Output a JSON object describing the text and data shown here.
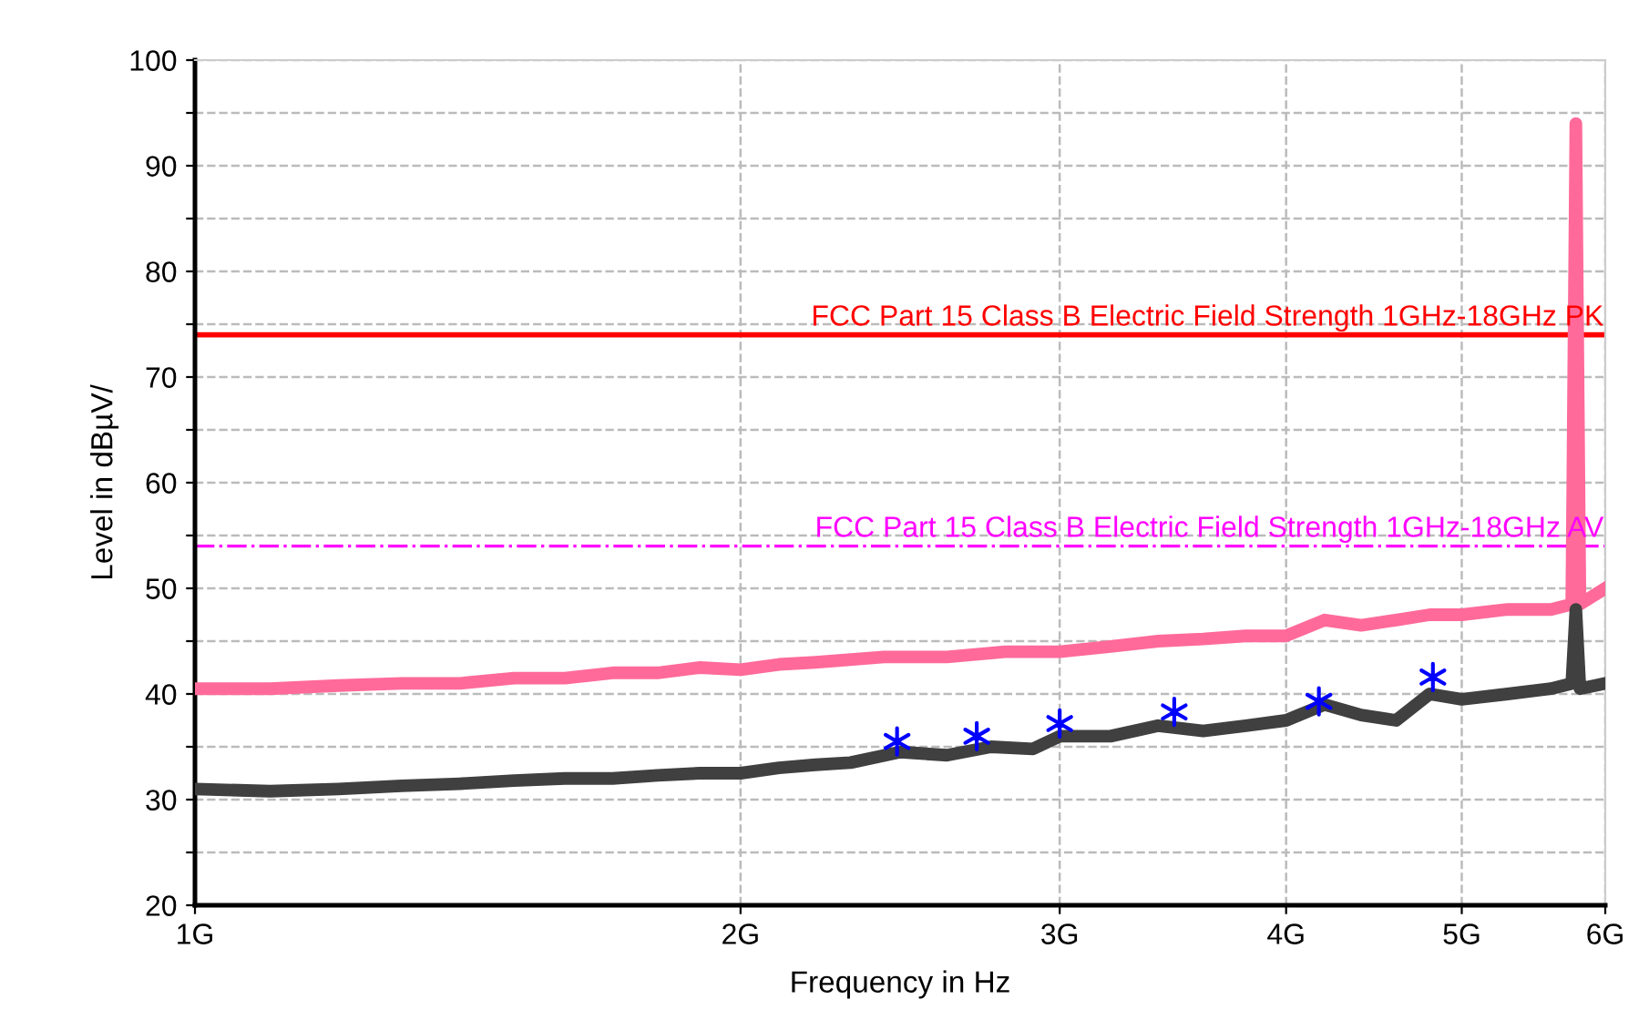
{
  "chart_data": {
    "type": "line",
    "xlabel": "Frequency in Hz",
    "ylabel": "Level in dBµV/",
    "log": "x",
    "xlim": [
      1,
      6
    ],
    "xticks": [
      {
        "value": 1,
        "label": "1G"
      },
      {
        "value": 2,
        "label": "2G"
      },
      {
        "value": 3,
        "label": "3G"
      },
      {
        "value": 4,
        "label": "4G"
      },
      {
        "value": 5,
        "label": "5G"
      },
      {
        "value": 6,
        "label": "6G"
      }
    ],
    "ylim": [
      20,
      100
    ],
    "yticks": [
      20,
      {
        "value": 25,
        "label": null
      },
      30,
      {
        "value": 35,
        "label": null
      },
      40,
      {
        "value": 45,
        "label": null
      },
      50,
      {
        "value": 55,
        "label": null
      },
      60,
      {
        "value": 65,
        "label": null
      },
      70,
      {
        "value": 75,
        "label": null
      },
      80,
      {
        "value": 85,
        "label": null
      },
      90,
      {
        "value": 95,
        "label": null
      },
      100
    ],
    "grid": true,
    "line_style": "solid",
    "marker": "none",
    "series": [
      {
        "color": "#ff6a9a",
        "x": [
          1.0,
          1.1,
          1.2,
          1.3,
          1.4,
          1.5,
          1.6,
          1.7,
          1.8,
          1.9,
          2.0,
          2.1,
          2.2,
          2.4,
          2.6,
          2.8,
          3.0,
          3.2,
          3.4,
          3.6,
          3.8,
          4.0,
          4.2,
          4.4,
          4.6,
          4.8,
          5.0,
          5.3,
          5.6,
          5.75,
          5.78,
          5.81,
          6.0
        ],
        "values": [
          40.5,
          40.5,
          40.8,
          41,
          41,
          41.5,
          41.5,
          42,
          42,
          42.5,
          42.3,
          42.8,
          43,
          43.5,
          43.5,
          44,
          44,
          44.5,
          45,
          45.2,
          45.5,
          45.5,
          47,
          46.5,
          47,
          47.5,
          47.5,
          48,
          48,
          48.5,
          94,
          48.5,
          50
        ]
      },
      {
        "color": "#404040",
        "x": [
          1.0,
          1.1,
          1.2,
          1.3,
          1.4,
          1.5,
          1.6,
          1.7,
          1.8,
          1.9,
          2.0,
          2.1,
          2.2,
          2.3,
          2.45,
          2.6,
          2.75,
          2.9,
          3.0,
          3.2,
          3.4,
          3.6,
          3.8,
          4.0,
          4.2,
          4.4,
          4.6,
          4.8,
          5.0,
          5.3,
          5.6,
          5.75,
          5.78,
          5.81,
          6.0
        ],
        "values": [
          31,
          30.8,
          31,
          31.3,
          31.5,
          31.8,
          32,
          32,
          32.3,
          32.5,
          32.5,
          33,
          33.3,
          33.5,
          34.5,
          34.2,
          35,
          34.8,
          36,
          36,
          37,
          36.5,
          37,
          37.5,
          39,
          38,
          37.5,
          40,
          39.5,
          40,
          40.5,
          41,
          48,
          40.5,
          41
        ]
      },
      {
        "type": "scatter",
        "color": "#0000ff",
        "marker": "cross",
        "x": [
          2.44,
          2.7,
          3.0,
          3.47,
          4.17,
          4.82
        ],
        "values": [
          35.5,
          36.0,
          37.2,
          38.3,
          39.3,
          41.6
        ]
      }
    ],
    "ref_lines": [
      {
        "axis": "y",
        "value": 74,
        "label": "FCC Part 15 Class B Electric Field Strength 1GHz-18GHz PK",
        "color": "#ff0000",
        "line_style": "solid"
      },
      {
        "axis": "y",
        "value": 54,
        "label": "FCC Part 15 Class B Electric Field Strength 1GHz-18GHz AV",
        "color": "#ff00ff",
        "line_style": "dashdot"
      }
    ]
  }
}
